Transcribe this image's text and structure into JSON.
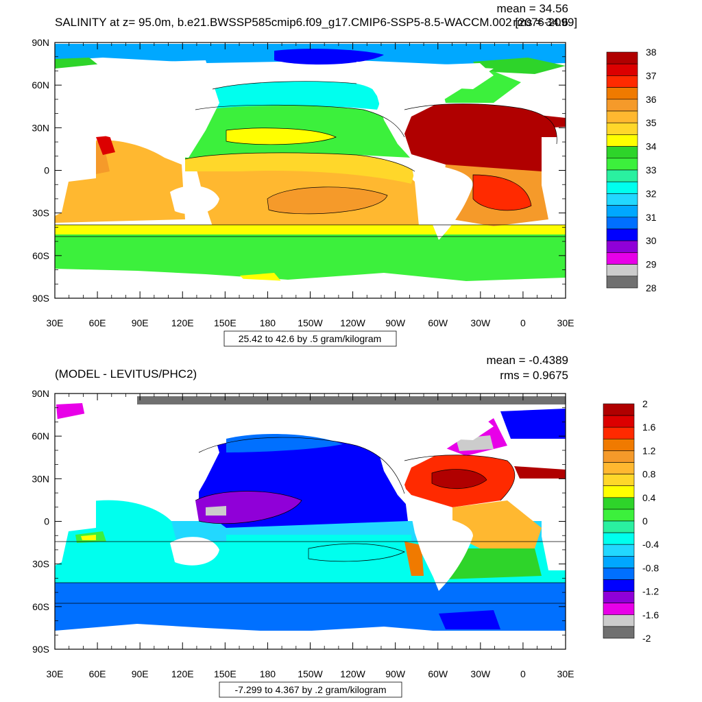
{
  "top_panel": {
    "title": "SALINITY at z=  95.0m, b.e21.BWSSP585cmip6.f09_g17.CMIP6-SSP5-8.5-WACCM.002 [2076-2099]",
    "mean_text": "mean = 34.56",
    "rms_text": "rms = 34.6",
    "contour_info": "25.42 to 42.6 by .5 gram/kilogram",
    "colorbar": {
      "labels": [
        "38",
        "37",
        "36",
        "35",
        "34",
        "33",
        "32",
        "31",
        "30",
        "29",
        "28"
      ],
      "colors": [
        "#b00000",
        "#dc0000",
        "#ff2a00",
        "#f07a00",
        "#f59a2a",
        "#ffb830",
        "#ffd72a",
        "#ffff00",
        "#2ed42a",
        "#3cf03c",
        "#2af0a0",
        "#00ffee",
        "#22d8ff",
        "#00a8ff",
        "#0070ff",
        "#0000ff",
        "#9000d8",
        "#e800e8",
        "#cccccc",
        "#707070"
      ]
    }
  },
  "bottom_panel": {
    "title": "(MODEL - LEVITUS/PHC2)",
    "mean_text": "mean = -0.4389",
    "rms_text": "rms = 0.9675",
    "contour_info": "-7.299 to 4.367 by .2 gram/kilogram",
    "colorbar": {
      "labels": [
        "2",
        "1.6",
        "1.2",
        "0.8",
        "0.4",
        "0",
        "-0.4",
        "-0.8",
        "-1.2",
        "-1.6",
        "-2"
      ],
      "colors": [
        "#b00000",
        "#dc0000",
        "#ff2a00",
        "#f07a00",
        "#f59a2a",
        "#ffb830",
        "#ffd72a",
        "#ffff00",
        "#2ed42a",
        "#3cf03c",
        "#2af0a0",
        "#00ffee",
        "#22d8ff",
        "#00a8ff",
        "#0070ff",
        "#0000ff",
        "#9000d8",
        "#e800e8",
        "#cccccc",
        "#707070"
      ]
    }
  },
  "axes": {
    "lat_labels": [
      "90N",
      "60N",
      "30N",
      "0",
      "30S",
      "60S",
      "90S"
    ],
    "lon_labels": [
      "30E",
      "60E",
      "90E",
      "120E",
      "150E",
      "180",
      "150W",
      "120W",
      "90W",
      "60W",
      "30W",
      "0",
      "30E"
    ]
  }
}
